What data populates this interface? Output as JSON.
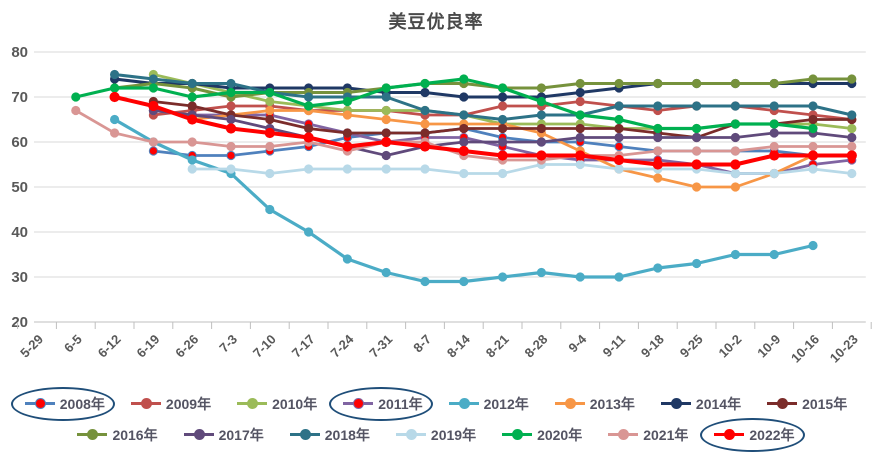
{
  "title": "美豆优良率",
  "chart_data": {
    "type": "line",
    "title": "美豆优良率",
    "xlabel": "",
    "ylabel": "",
    "ylim": [
      20,
      80
    ],
    "ytick_step": 10,
    "grid": "horizontal",
    "legend_position": "bottom",
    "annotations": {
      "circled_legend_items": [
        "2008年",
        "2011年",
        "2022年"
      ],
      "circle_color": "#1f4e79"
    },
    "categories": [
      "5-29",
      "6-5",
      "6-12",
      "6-19",
      "6-26",
      "7-3",
      "7-10",
      "7-17",
      "7-24",
      "7-31",
      "8-7",
      "8-14",
      "8-21",
      "8-28",
      "9-4",
      "9-11",
      "9-18",
      "9-25",
      "10-2",
      "10-9",
      "10-16",
      "10-23"
    ],
    "series": [
      {
        "name": "2008年",
        "color": "#4F81BD",
        "marker_color": "#FF0000",
        "width": 2.75,
        "circled": true,
        "values": [
          null,
          null,
          null,
          58,
          57,
          57,
          58,
          59,
          61,
          62,
          62,
          63,
          61,
          60,
          60,
          59,
          58,
          58,
          58,
          58,
          57,
          57
        ]
      },
      {
        "name": "2009年",
        "color": "#C0504D",
        "marker_color": "#C0504D",
        "width": 2.75,
        "circled": false,
        "values": [
          null,
          null,
          null,
          66,
          67,
          68,
          68,
          67,
          67,
          67,
          66,
          66,
          68,
          68,
          69,
          68,
          67,
          68,
          68,
          67,
          66,
          65
        ]
      },
      {
        "name": "2010年",
        "color": "#9BBB59",
        "marker_color": "#9BBB59",
        "width": 2.75,
        "circled": false,
        "values": [
          null,
          null,
          null,
          75,
          73,
          71,
          69,
          68,
          67,
          67,
          67,
          66,
          64,
          64,
          64,
          63,
          63,
          63,
          64,
          64,
          64,
          63
        ]
      },
      {
        "name": "2011年",
        "color": "#8064A2",
        "marker_color": "#FF0000",
        "width": 2.75,
        "circled": true,
        "values": [
          null,
          null,
          null,
          67,
          66,
          66,
          66,
          64,
          62,
          60,
          61,
          61,
          59,
          57,
          56,
          56,
          56,
          55,
          53,
          53,
          55,
          56
        ]
      },
      {
        "name": "2012年",
        "color": "#4BACC6",
        "marker_color": "#4BACC6",
        "width": 3.2,
        "circled": false,
        "values": [
          null,
          null,
          65,
          60,
          56,
          53,
          45,
          40,
          34,
          31,
          29,
          29,
          30,
          31,
          30,
          30,
          32,
          33,
          35,
          35,
          37,
          null
        ]
      },
      {
        "name": "2013年",
        "color": "#F79646",
        "marker_color": "#F79646",
        "width": 2.75,
        "circled": false,
        "values": [
          null,
          null,
          null,
          null,
          65,
          66,
          67,
          67,
          66,
          65,
          64,
          64,
          64,
          62,
          58,
          54,
          52,
          50,
          50,
          53,
          57,
          null
        ]
      },
      {
        "name": "2014年",
        "color": "#1F3864",
        "marker_color": "#1F3864",
        "width": 3,
        "circled": false,
        "values": [
          null,
          null,
          74,
          73,
          73,
          72,
          72,
          72,
          72,
          71,
          71,
          70,
          70,
          70,
          71,
          72,
          73,
          73,
          73,
          73,
          73,
          73
        ]
      },
      {
        "name": "2015年",
        "color": "#7B2C2A",
        "marker_color": "#7B2C2A",
        "width": 2.75,
        "circled": false,
        "values": [
          null,
          null,
          null,
          69,
          68,
          66,
          65,
          63,
          62,
          62,
          62,
          63,
          63,
          63,
          63,
          63,
          62,
          61,
          64,
          64,
          65,
          65
        ]
      },
      {
        "name": "2016年",
        "color": "#76923C",
        "marker_color": "#76923C",
        "width": 3,
        "circled": false,
        "values": [
          null,
          null,
          72,
          73,
          72,
          70,
          71,
          71,
          71,
          72,
          73,
          73,
          72,
          72,
          73,
          73,
          73,
          73,
          73,
          73,
          74,
          74
        ]
      },
      {
        "name": "2017年",
        "color": "#604A7B",
        "marker_color": "#604A7B",
        "width": 2.75,
        "circled": false,
        "values": [
          null,
          null,
          null,
          67,
          66,
          65,
          63,
          61,
          59,
          57,
          59,
          60,
          60,
          60,
          61,
          61,
          61,
          61,
          61,
          62,
          62,
          61
        ]
      },
      {
        "name": "2018年",
        "color": "#2D7287",
        "marker_color": "#2D7287",
        "width": 3,
        "circled": false,
        "values": [
          null,
          null,
          75,
          74,
          73,
          73,
          71,
          70,
          70,
          70,
          67,
          66,
          65,
          66,
          66,
          68,
          68,
          68,
          68,
          68,
          68,
          66
        ]
      },
      {
        "name": "2019年",
        "color": "#B8D9E8",
        "marker_color": "#B8D9E8",
        "width": 2.75,
        "circled": false,
        "values": [
          null,
          null,
          null,
          null,
          54,
          54,
          53,
          54,
          54,
          54,
          54,
          53,
          53,
          55,
          55,
          54,
          54,
          54,
          53,
          53,
          54,
          53
        ]
      },
      {
        "name": "2020年",
        "color": "#00B050",
        "marker_color": "#00B050",
        "width": 3.2,
        "circled": false,
        "values": [
          null,
          70,
          72,
          72,
          70,
          71,
          71,
          68,
          69,
          72,
          73,
          74,
          72,
          69,
          66,
          65,
          63,
          63,
          64,
          64,
          63,
          null
        ]
      },
      {
        "name": "2021年",
        "color": "#D99694",
        "marker_color": "#D99694",
        "width": 2.75,
        "circled": false,
        "values": [
          null,
          67,
          62,
          60,
          60,
          59,
          59,
          60,
          58,
          60,
          60,
          57,
          56,
          56,
          57,
          57,
          58,
          58,
          58,
          59,
          59,
          59
        ]
      },
      {
        "name": "2022年",
        "color": "#FF0000",
        "marker_color": "#FF0000",
        "width": 4,
        "circled": true,
        "values": [
          null,
          null,
          70,
          68,
          65,
          63,
          62,
          61,
          59,
          60,
          59,
          58,
          57,
          57,
          57,
          56,
          55,
          55,
          55,
          57,
          57,
          57
        ]
      }
    ],
    "legend_rows": [
      8,
      7
    ]
  }
}
